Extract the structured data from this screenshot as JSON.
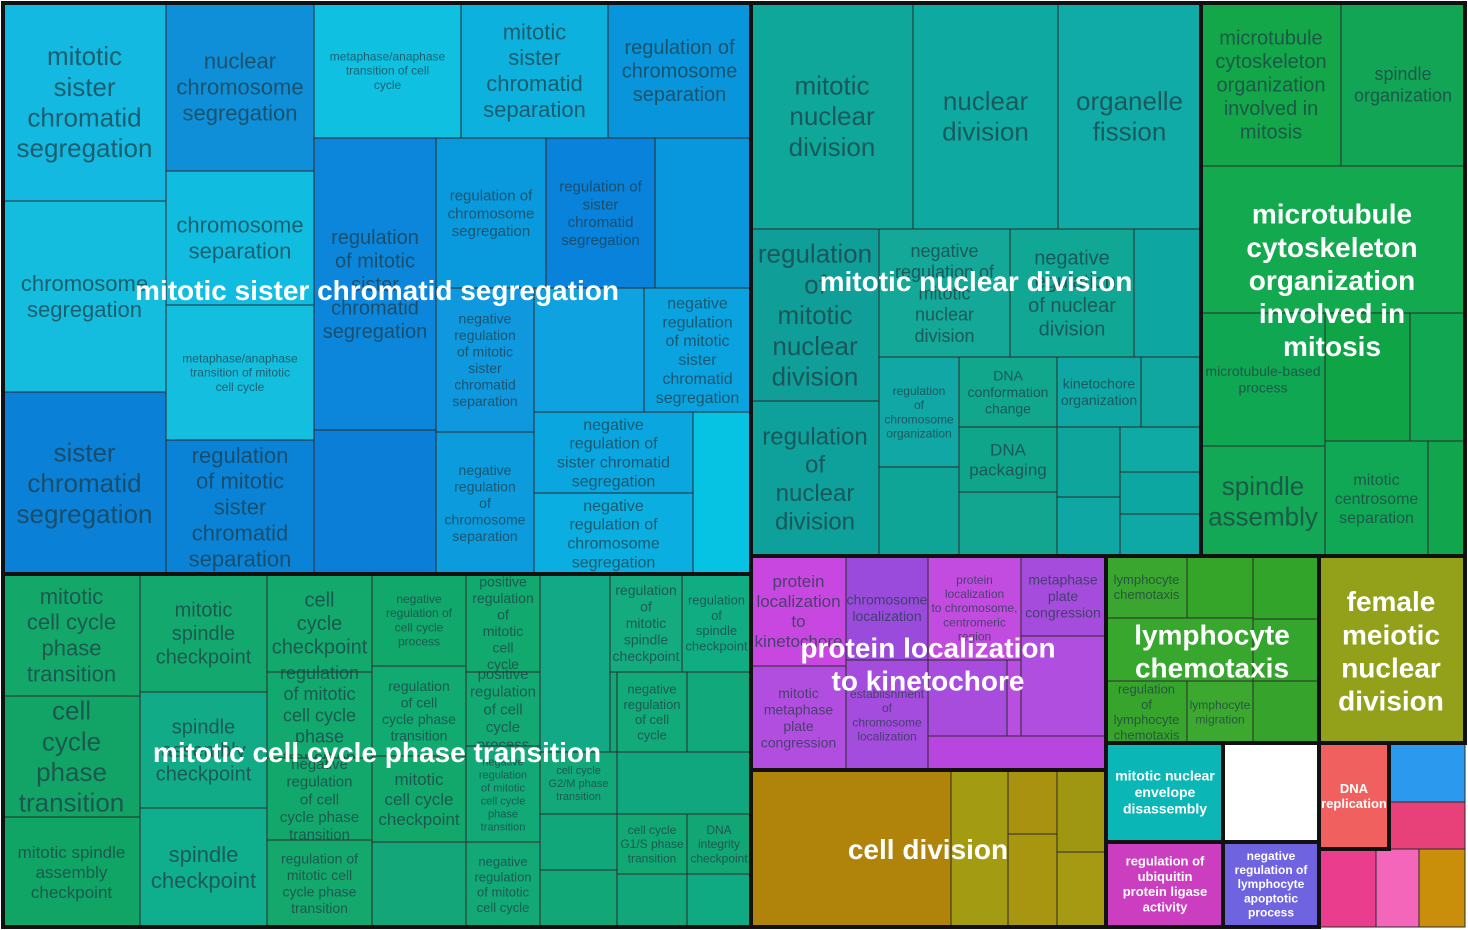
{
  "chart_data": {
    "type": "treemap",
    "groups": [
      {
        "name": "mitotic sister chromatid segregation",
        "color": "#0b7fd8",
        "terms": [
          {
            "label": "mitotic sister chromatid segregation",
            "color": "#13b9e0"
          },
          {
            "label": "chromosome segregation",
            "color": "#14bddd"
          },
          {
            "label": "sister chromatid segregation",
            "color": "#0a80d6"
          },
          {
            "label": "nuclear chromosome segregation",
            "color": "#0f8fd8"
          },
          {
            "label": "chromosome separation",
            "color": "#10bde0"
          },
          {
            "label": "metaphase/anaphase transition of mitotic cell cycle",
            "color": "#14bedf"
          },
          {
            "label": "regulation of mitotic sister chromatid separation",
            "color": "#0a83d7"
          },
          {
            "label": "metaphase/anaphase transition of cell cycle",
            "color": "#0fc0e1"
          },
          {
            "label": "mitotic sister chromatid separation",
            "color": "#0cb2dd"
          },
          {
            "label": "regulation of chromosome separation",
            "color": "#0895dc"
          },
          {
            "label": "regulation of mitotic sister chromatid segregation",
            "color": "#0b86da"
          },
          {
            "label": "regulation of chromosome segregation",
            "color": "#099ade"
          },
          {
            "label": "regulation of sister chromatid segregation",
            "color": "#0882da"
          },
          {
            "label": "negative regulation of mitotic sister chromatid separation",
            "color": "#0f98dd"
          },
          {
            "label": "negative regulation of mitotic sister chromatid segregation",
            "color": "#0aa3e0"
          },
          {
            "label": "negative regulation of chromosome separation",
            "color": "#0c9cdd"
          },
          {
            "label": "negative regulation of sister chromatid segregation",
            "color": "#0aa6e0"
          },
          {
            "label": "negative regulation of chromosome segregation",
            "color": "#0aaee0"
          },
          {
            "label": "",
            "color": "#06c3e4"
          },
          {
            "label": "",
            "color": "#0b7fd8"
          },
          {
            "label": "",
            "color": "#0ea3e0"
          },
          {
            "label": "",
            "color": "#0896dd"
          }
        ]
      },
      {
        "name": "mitotic cell cycle phase transition",
        "color": "#12a678",
        "terms": [
          {
            "label": "mitotic cell cycle phase transition",
            "color": "#13a86a"
          },
          {
            "label": "cell cycle phase transition",
            "color": "#12a466"
          },
          {
            "label": "mitotic spindle assembly checkpoint",
            "color": "#11a565"
          },
          {
            "label": "mitotic spindle checkpoint",
            "color": "#13a96e"
          },
          {
            "label": "spindle assembly checkpoint",
            "color": "#12ab87"
          },
          {
            "label": "spindle checkpoint",
            "color": "#0fae8c"
          },
          {
            "label": "cell cycle checkpoint",
            "color": "#13a86c"
          },
          {
            "label": "regulation of mitotic cell cycle phase transition",
            "color": "#12a96f"
          },
          {
            "label": "negative regulation of cell cycle process",
            "color": "#11a86b"
          },
          {
            "label": "positive regulation of mitotic cell cycle",
            "color": "#11a96e"
          },
          {
            "label": "negative regulation of cell cycle phase transition",
            "color": "#13a86b"
          },
          {
            "label": "regulation of cell cycle phase transition",
            "color": "#11aa70"
          },
          {
            "label": "mitotic cell cycle checkpoint",
            "color": "#12a86b"
          },
          {
            "label": "regulation of mitotic cell cycle phase transition",
            "color": "#14a86c"
          },
          {
            "label": "positive regulation of cell cycle process",
            "color": "#12aa72"
          },
          {
            "label": "positive regulation of cell cycle",
            "color": "#13a874"
          },
          {
            "label": "negative regulation of mitotic cell cycle phase transition",
            "color": "#11aa77"
          },
          {
            "label": "negative regulation of mitotic cell cycle",
            "color": "#12a977"
          },
          {
            "label": "regulation of mitotic spindle checkpoint",
            "color": "#14ab7e"
          },
          {
            "label": "regulation of spindle checkpoint",
            "color": "#11ad82"
          },
          {
            "label": "negative regulation of cell cycle",
            "color": "#12aa78"
          },
          {
            "label": "cell cycle G2/M phase transition",
            "color": "#12a879"
          },
          {
            "label": "cell cycle G1/S phase transition",
            "color": "#11a874"
          },
          {
            "label": "DNA integrity checkpoint",
            "color": "#12a674"
          }
        ]
      },
      {
        "name": "mitotic nuclear division",
        "color": "#0ea69f",
        "terms": [
          {
            "label": "mitotic nuclear division",
            "color": "#0ea799"
          },
          {
            "label": "nuclear division",
            "color": "#0eaaa1"
          },
          {
            "label": "organelle fission",
            "color": "#10aba6"
          },
          {
            "label": "regulation of mitotic nuclear division",
            "color": "#0f9e98"
          },
          {
            "label": "regulation of nuclear division",
            "color": "#0ea09a"
          },
          {
            "label": "negative regulation of mitotic nuclear division",
            "color": "#13a897"
          },
          {
            "label": "negative regulation of nuclear division",
            "color": "#10a895"
          },
          {
            "label": "regulation of chromosome organization",
            "color": "#10a7a5"
          },
          {
            "label": "DNA conformation change",
            "color": "#11a78d"
          },
          {
            "label": "DNA packaging",
            "color": "#0fa58a"
          },
          {
            "label": "kinetochore organization",
            "color": "#0fa7a4"
          }
        ]
      },
      {
        "name": "microtubule cytoskeleton organization involved in mitosis",
        "color": "#10a54f",
        "terms": [
          {
            "label": "microtubule cytoskeleton organization involved in mitosis",
            "color": "#13a74a"
          },
          {
            "label": "spindle organization",
            "color": "#11a555"
          },
          {
            "label": "microtubule-based process",
            "color": "#10a753"
          },
          {
            "label": "spindle assembly",
            "color": "#12a856"
          },
          {
            "label": "mitotic centrosome separation",
            "color": "#11a855"
          }
        ]
      },
      {
        "name": "protein localization to kinetochore",
        "color": "#b94fe0",
        "terms": [
          {
            "label": "protein localization to kinetochore",
            "color": "#c747e0"
          },
          {
            "label": "chromosome localization",
            "color": "#9a4bdc"
          },
          {
            "label": "protein localization to chromosome, centromeric region",
            "color": "#c24ce0"
          },
          {
            "label": "metaphase plate congression",
            "color": "#a54cdc"
          },
          {
            "label": "mitotic metaphase plate congression",
            "color": "#b24edf"
          },
          {
            "label": "establishment of chromosome localization",
            "color": "#a44cdd"
          }
        ]
      },
      {
        "name": "lymphocyte chemotaxis",
        "color": "#35a52a",
        "terms": [
          {
            "label": "lymphocyte chemotaxis",
            "color": "#3aa52f"
          },
          {
            "label": "lymphocyte chemotaxis",
            "color": "#38a72e"
          },
          {
            "label": "regulation of lymphocyte chemotaxis",
            "color": "#37a52c"
          },
          {
            "label": "lymphocyte migration",
            "color": "#3ca830"
          }
        ]
      },
      {
        "name": "female meiotic nuclear division",
        "color": "#8ea11a",
        "terms": [
          {
            "label": "female meiotic nuclear division",
            "color": "#93a11a"
          }
        ]
      },
      {
        "name": "cell division",
        "color": "#b08608",
        "terms": [
          {
            "label": "cell division",
            "color": "#b0830a"
          }
        ]
      },
      {
        "name": "mitotic nuclear envelope disassembly",
        "color": "#0ab7b6",
        "terms": [
          {
            "label": "mitotic nuclear envelope disassembly",
            "color": "#0ab7b6"
          }
        ]
      },
      {
        "name": "regulation of ubiquitin protein ligase activity",
        "color": "#cc3ec0",
        "terms": [
          {
            "label": "regulation of ubiquitin protein ligase activity",
            "color": "#cc3ec0"
          }
        ]
      },
      {
        "name": "negative regulation of lymphocyte apoptotic process",
        "color": "#6f63e0",
        "terms": [
          {
            "label": "negative regulation of lymphocyte apoptotic process",
            "color": "#6f63e0"
          }
        ]
      },
      {
        "name": "DNA replication",
        "color": "#f0605f",
        "terms": [
          {
            "label": "DNA replication",
            "color": "#f0605f"
          }
        ]
      }
    ]
  }
}
